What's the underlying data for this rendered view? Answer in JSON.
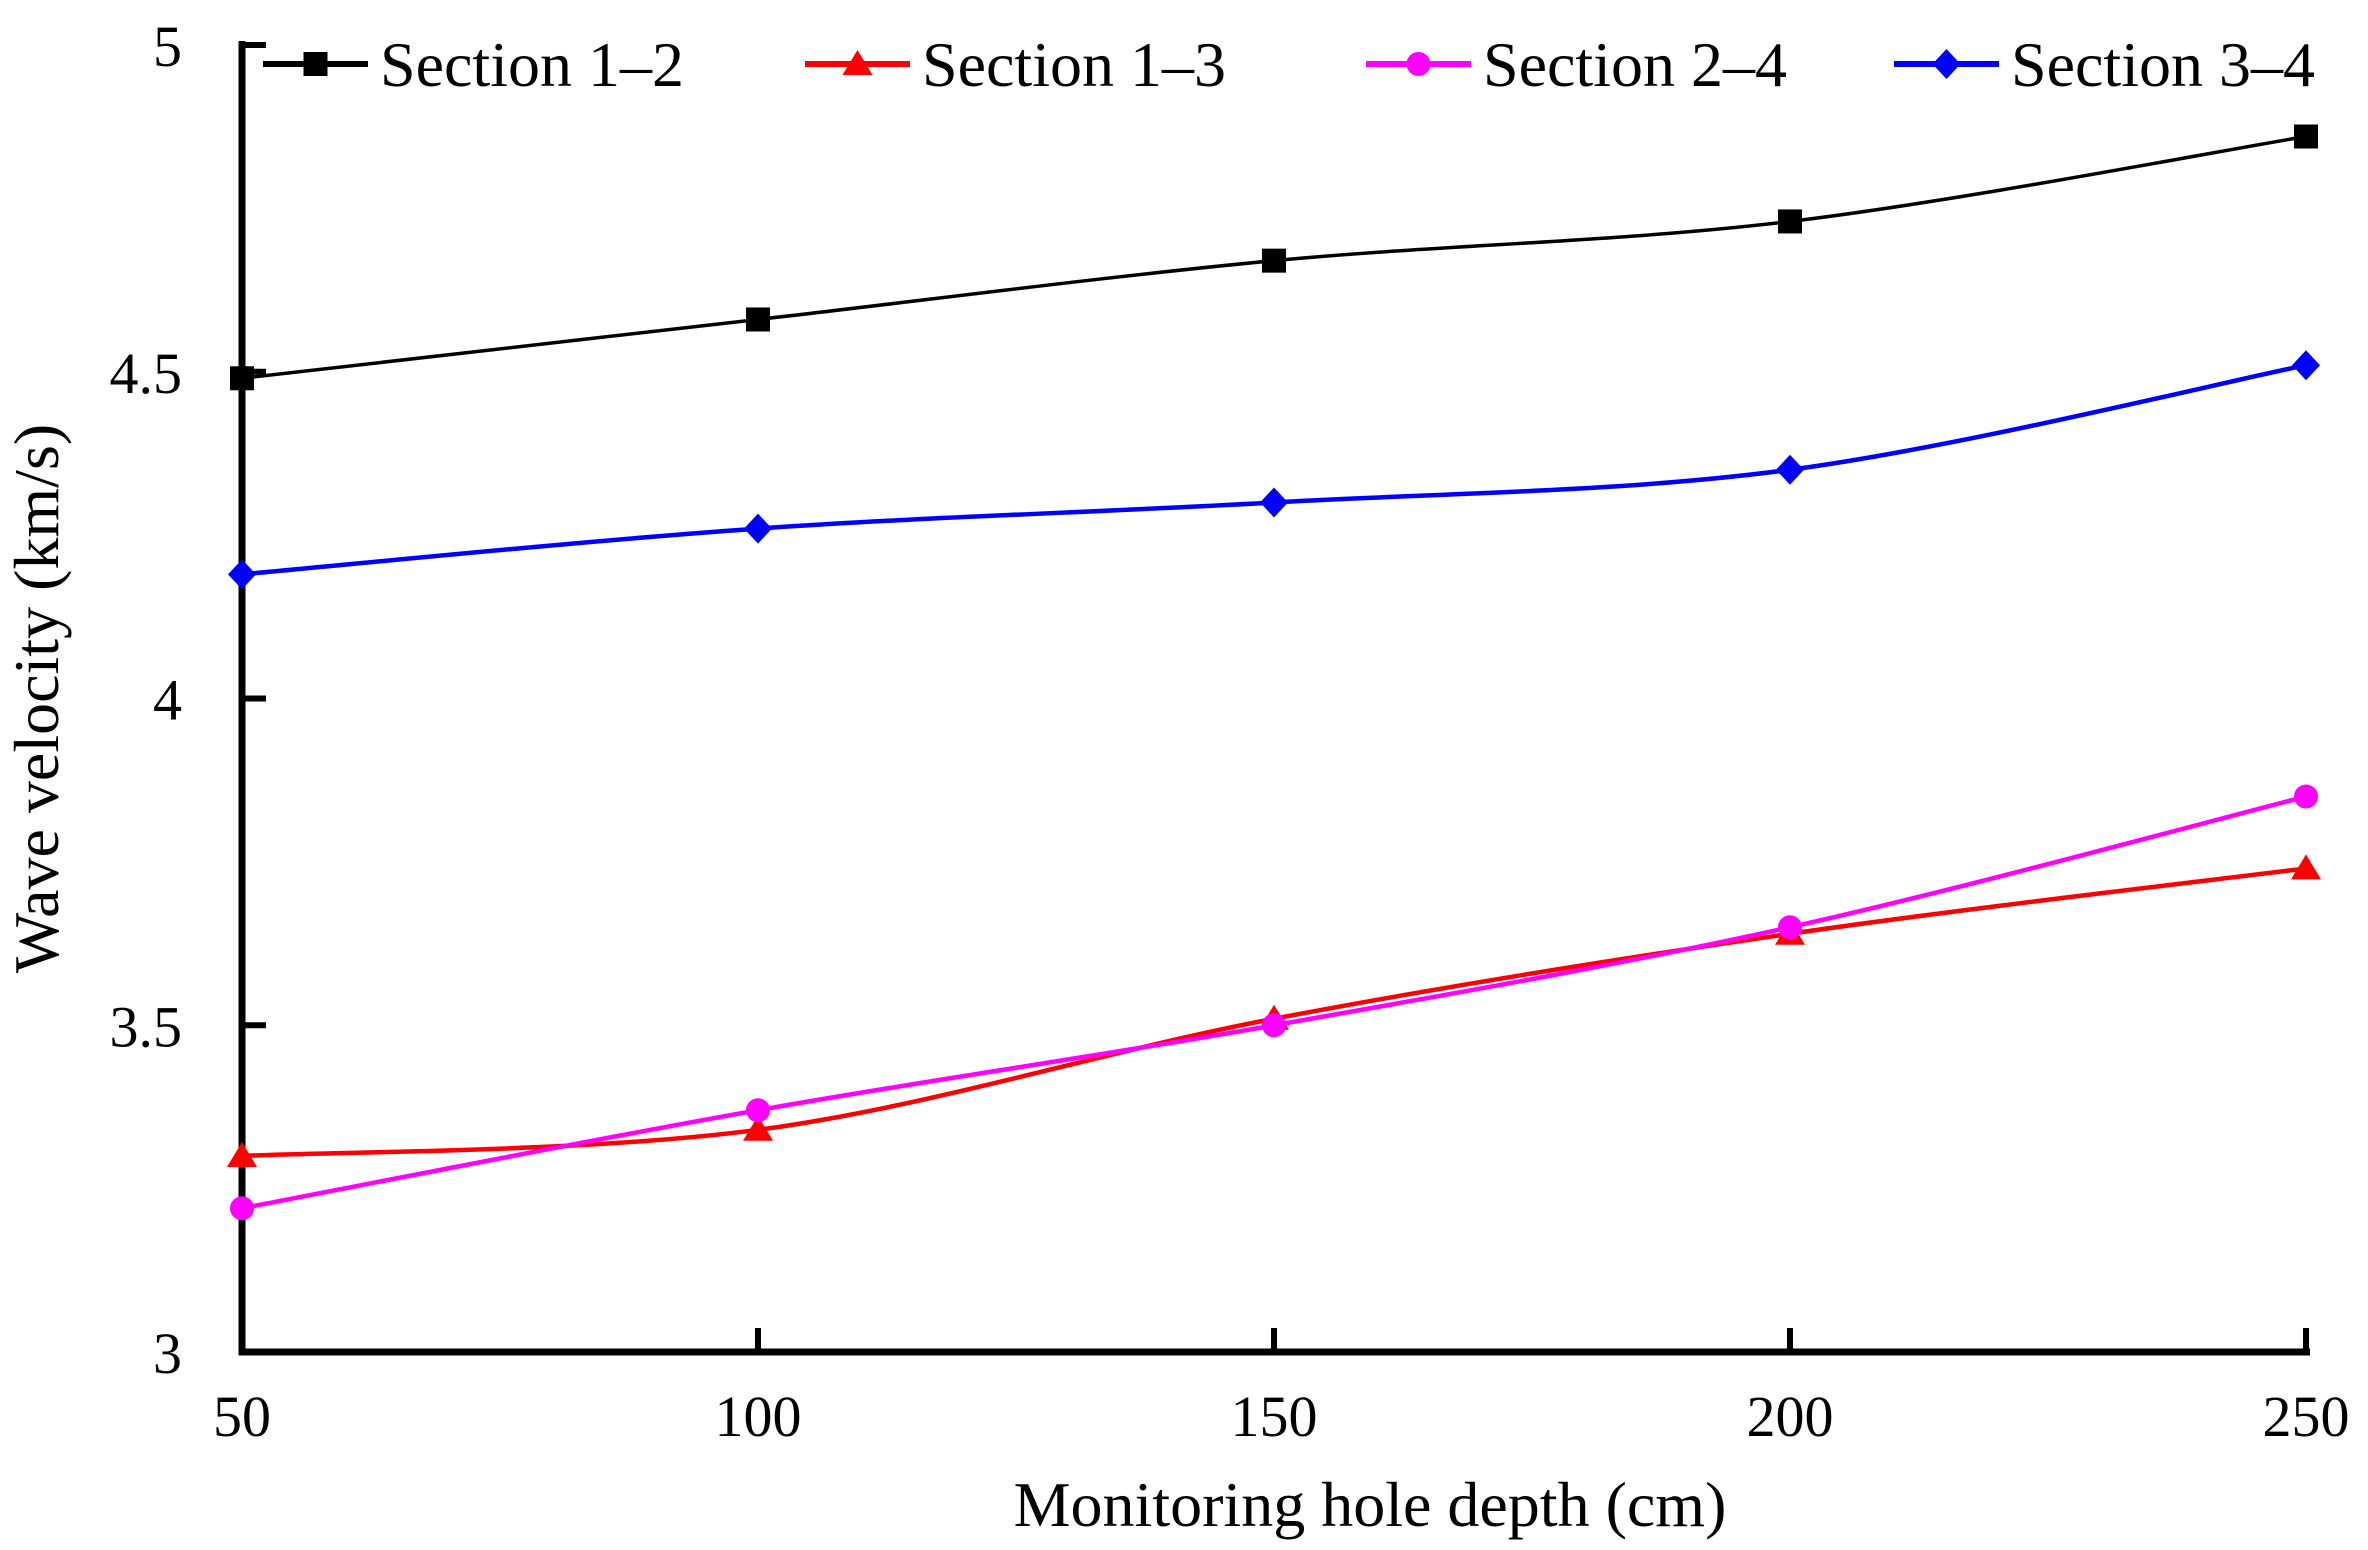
{
  "chart_data": {
    "type": "line",
    "title": "",
    "xlabel": "Monitoring hole depth (cm)",
    "ylabel": "Wave velocity (km/s)",
    "x": [
      50,
      100,
      150,
      200,
      250
    ],
    "xlim": [
      50,
      250
    ],
    "ylim": [
      3,
      5
    ],
    "x_ticks": [
      50,
      100,
      150,
      200,
      250
    ],
    "x_tick_labels": [
      "50",
      "100",
      "150",
      "200",
      "250"
    ],
    "y_ticks": [
      3,
      3.5,
      4,
      4.5,
      5
    ],
    "y_tick_labels": [
      "3",
      "3.5",
      "4",
      "4.5",
      "5"
    ],
    "grid": false,
    "legend_position": "top",
    "line_style": "smooth",
    "axis_color": "#000000",
    "series": [
      {
        "name": "Section 1–2",
        "color": "#000000",
        "marker": "square",
        "values": [
          4.49,
          4.58,
          4.67,
          4.73,
          4.86
        ]
      },
      {
        "name": "Section 1–3",
        "color": "#ff0000",
        "marker": "triangle",
        "values": [
          3.3,
          3.34,
          3.51,
          3.64,
          3.74
        ]
      },
      {
        "name": "Section 2–4",
        "color": "#ff00ff",
        "marker": "circle",
        "values": [
          3.22,
          3.37,
          3.5,
          3.65,
          3.85
        ]
      },
      {
        "name": "Section 3–4",
        "color": "#0000ff",
        "marker": "diamond",
        "values": [
          4.19,
          4.26,
          4.3,
          4.35,
          4.51
        ]
      }
    ]
  }
}
